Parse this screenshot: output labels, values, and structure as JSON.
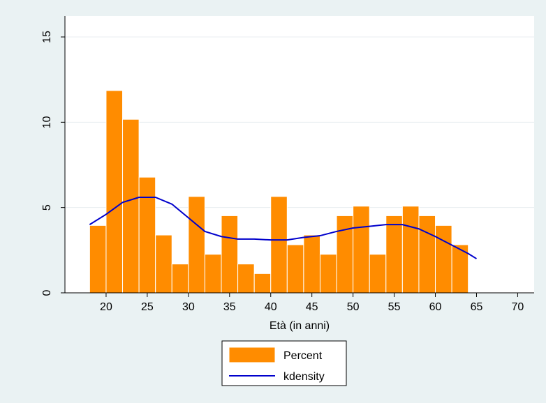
{
  "chart_data": {
    "type": "bar",
    "title": "",
    "xlabel": "Età (in anni)",
    "ylabel": "",
    "xlim": [
      15,
      72
    ],
    "ylim": [
      0,
      15
    ],
    "x_ticks": [
      20,
      25,
      30,
      35,
      40,
      45,
      50,
      55,
      60,
      65,
      70
    ],
    "y_ticks": [
      0,
      5,
      10,
      15
    ],
    "grid": "horizontal",
    "legend_position": "bottom",
    "bin_width": 2,
    "bin_start": 18,
    "series": [
      {
        "name": "Percent",
        "kind": "bar",
        "color": "#ff8c00",
        "values": [
          3.95,
          11.86,
          10.17,
          6.78,
          3.39,
          1.69,
          5.65,
          2.26,
          4.52,
          1.69,
          1.13,
          5.65,
          2.82,
          3.39,
          2.26,
          4.52,
          5.08,
          2.26,
          4.52,
          5.08,
          4.52,
          3.95,
          2.82
        ]
      },
      {
        "name": "kdensity",
        "kind": "line",
        "color": "#0000cc",
        "x": [
          18,
          20,
          22,
          24,
          26,
          28,
          30,
          32,
          34,
          36,
          38,
          40,
          42,
          44,
          46,
          48,
          50,
          52,
          54,
          56,
          58,
          60,
          62,
          64,
          65
        ],
        "y": [
          4.0,
          4.6,
          5.3,
          5.6,
          5.6,
          5.2,
          4.4,
          3.6,
          3.3,
          3.15,
          3.15,
          3.1,
          3.1,
          3.25,
          3.35,
          3.6,
          3.8,
          3.9,
          4.0,
          4.0,
          3.75,
          3.3,
          2.8,
          2.3,
          2.0
        ]
      }
    ]
  }
}
